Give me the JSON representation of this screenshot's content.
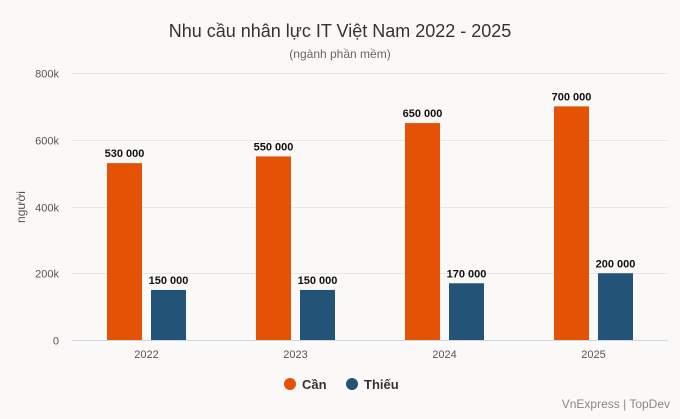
{
  "chart_data": {
    "type": "bar",
    "title": "Nhu cầu nhân lực IT Việt Nam 2022 - 2025",
    "subtitle": "(ngành phần mềm)",
    "xlabel": "",
    "ylabel": "người",
    "categories": [
      "2022",
      "2023",
      "2024",
      "2025"
    ],
    "series": [
      {
        "name": "Cần",
        "values": [
          530000,
          550000,
          650000,
          700000
        ],
        "labels": [
          "530 000",
          "550 000",
          "650 000",
          "700 000"
        ],
        "color": "#e35205"
      },
      {
        "name": "Thiếu",
        "values": [
          150000,
          150000,
          170000,
          200000
        ],
        "labels": [
          "150 000",
          "150 000",
          "170 000",
          "200 000"
        ],
        "color": "#245378"
      }
    ],
    "ylim": [
      0,
      800000
    ],
    "yticks": [
      0,
      200000,
      400000,
      600000,
      800000
    ],
    "ytick_labels": [
      "0",
      "200k",
      "400k",
      "600k",
      "800k"
    ],
    "grid": true,
    "legend_position": "bottom-center"
  },
  "credit": "VnExpress | TopDev"
}
